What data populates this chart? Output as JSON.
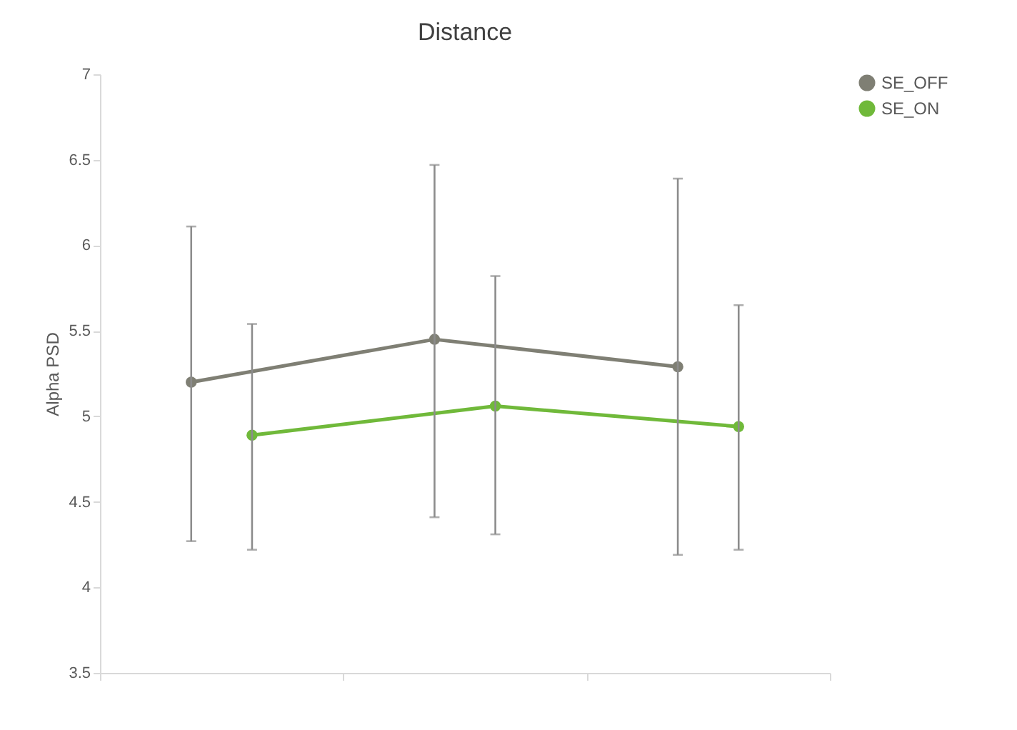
{
  "chart_data": {
    "type": "line",
    "title": "Distance",
    "ylabel": "Alpha PSD",
    "categories": [
      null,
      null,
      null
    ],
    "ylim": [
      3.5,
      7
    ],
    "yticks": [
      3.5,
      4,
      4.5,
      5,
      5.5,
      6,
      6.5,
      7
    ],
    "grid": false,
    "legend": "right",
    "marker": "circle",
    "line_style": "solid",
    "series": [
      {
        "name": "SE_OFF",
        "color": "#7f7f74",
        "values": [
          5.2,
          5.45,
          5.29
        ],
        "errors": [
          [
            4.27,
            6.11
          ],
          [
            4.41,
            6.47
          ],
          [
            4.19,
            6.39
          ]
        ]
      },
      {
        "name": "SE_ON",
        "color": "#70b93a",
        "values": [
          4.89,
          5.06,
          4.94
        ],
        "errors": [
          [
            4.22,
            5.54
          ],
          [
            4.31,
            5.82
          ],
          [
            4.22,
            5.65
          ]
        ]
      }
    ]
  }
}
